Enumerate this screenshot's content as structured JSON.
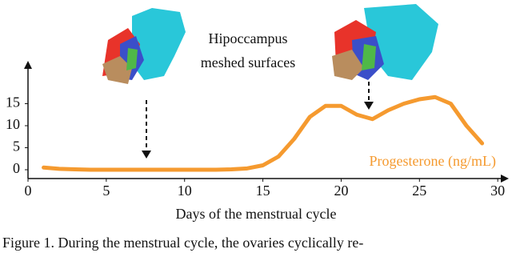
{
  "chart_data": {
    "type": "line",
    "annotation": [
      "Hipoccampus",
      "meshed surfaces"
    ],
    "xlabel": "Days of the menstrual cycle",
    "x": [
      1,
      2,
      3,
      4,
      5,
      6,
      7,
      8,
      9,
      10,
      11,
      12,
      13,
      14,
      15,
      16,
      17,
      18,
      19,
      20,
      21,
      22,
      23,
      24,
      25,
      26,
      27,
      28,
      29
    ],
    "series": [
      {
        "name": "Progesterone (ng/mL)",
        "color": "#f59a2f",
        "values": [
          0.5,
          0.2,
          0.1,
          0,
          0,
          0,
          0,
          0,
          0,
          0,
          0,
          0,
          0.1,
          0.3,
          1,
          3,
          7,
          12,
          14.5,
          14.5,
          12.5,
          11.5,
          13.5,
          15,
          16,
          16.5,
          15,
          10,
          6
        ]
      }
    ],
    "xlim": [
      0,
      30.4
    ],
    "ylim": [
      -2,
      24
    ],
    "xticks": [
      0,
      5,
      10,
      15,
      20,
      25,
      30
    ],
    "yticks": [
      0,
      5,
      10,
      15
    ]
  },
  "caption": "Figure 1. During the menstrual cycle, the ovaries cyclically re-"
}
